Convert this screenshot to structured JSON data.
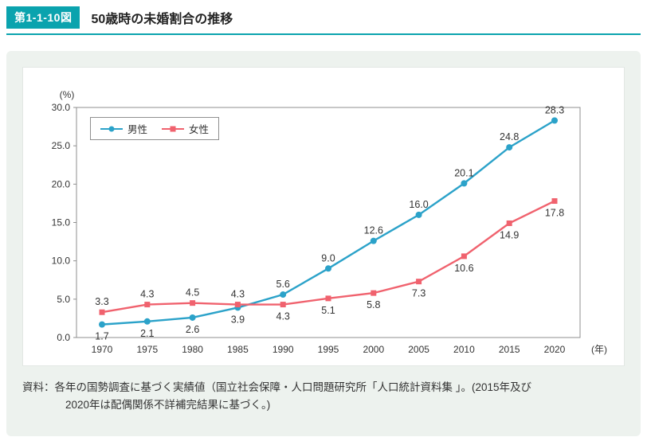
{
  "header": {
    "badge": "第1-1-10図",
    "title": "50歳時の未婚割合の推移"
  },
  "chart_data": {
    "type": "line",
    "x": [
      "1970",
      "1975",
      "1980",
      "1985",
      "1990",
      "1995",
      "2000",
      "2005",
      "2010",
      "2015",
      "2020"
    ],
    "series": [
      {
        "name": "男性",
        "marker": "circle",
        "color": "#2ba2c9",
        "values": [
          1.7,
          2.1,
          2.6,
          3.9,
          5.6,
          9.0,
          12.6,
          16.0,
          20.1,
          24.8,
          28.3
        ]
      },
      {
        "name": "女性",
        "marker": "square",
        "color": "#f0626e",
        "values": [
          3.3,
          4.3,
          4.5,
          4.3,
          4.3,
          5.1,
          5.8,
          7.3,
          10.6,
          14.9,
          17.8
        ]
      }
    ],
    "ylim": [
      0,
      30
    ],
    "ytick_step": 5,
    "y_unit": "(%)",
    "x_unit": "(年)",
    "legend_position": "top-left",
    "grid": false,
    "title": "50歳時の未婚割合の推移",
    "xlabel": "年",
    "ylabel": "%"
  },
  "source_note": {
    "line1": "資料：各年の国勢調査に基づく実績値（国立社会保障・人口問題研究所「人口統計資料集 」。(2015年及び",
    "line2": "2020年は配偶関係不詳補完結果に基づく。)"
  },
  "colors": {
    "accent_teal": "#0aa3ae",
    "male": "#2ba2c9",
    "female": "#f0626e",
    "panel_bg": "#edf2ee"
  }
}
